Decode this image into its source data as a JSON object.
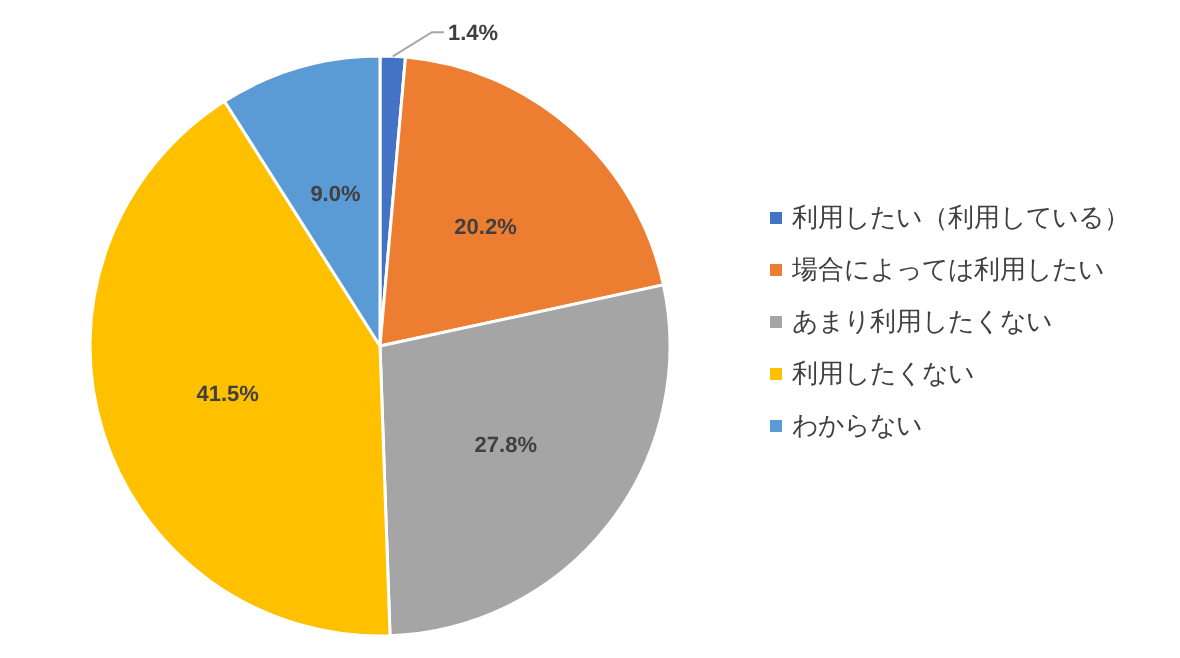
{
  "chart_data": {
    "type": "pie",
    "categories": [
      "利用したい（利用している）",
      "場合によっては利用したい",
      "あまり利用したくない",
      "利用したくない",
      "わからない"
    ],
    "values": [
      1.4,
      20.2,
      27.8,
      41.5,
      9.0
    ],
    "value_labels": [
      "1.4%",
      "20.2%",
      "27.8%",
      "41.5%",
      "9.0%"
    ],
    "colors": [
      "#4472c4",
      "#ed7d31",
      "#a5a5a5",
      "#ffc000",
      "#5b9bd5"
    ],
    "legend": "right"
  }
}
